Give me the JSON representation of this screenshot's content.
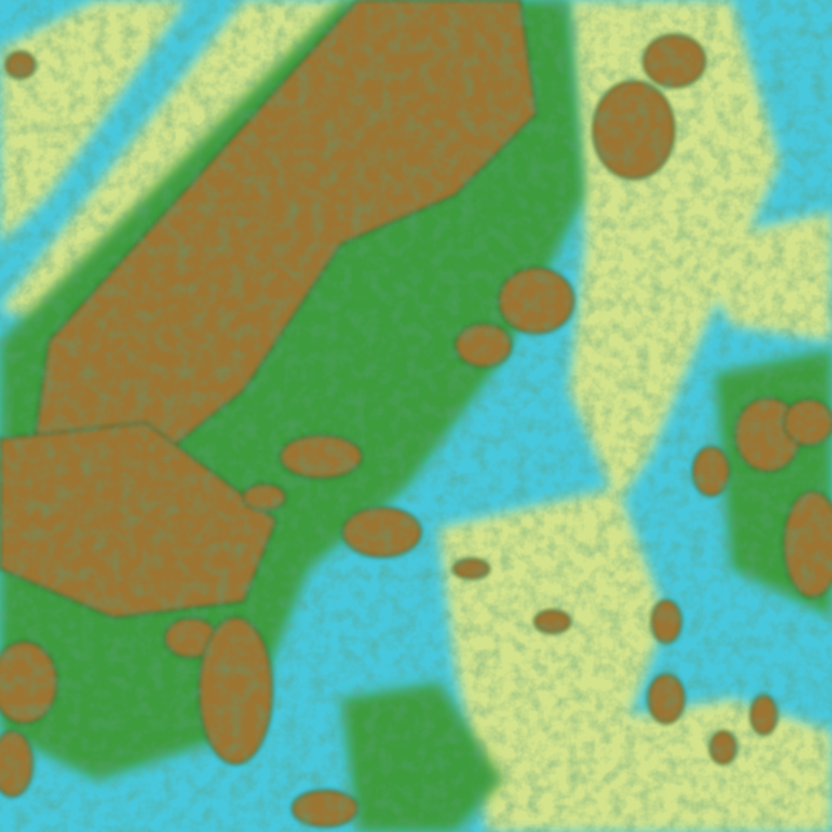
{
  "image": {
    "kind": "false-color satellite imagery",
    "palette": {
      "clear_surface": "#48c8dc",
      "low_cloud": "#d4e48c",
      "mid_cloud": "#3c9c3c",
      "high_cloud": "#9c7430",
      "cloud_edge": "#1e6e3a"
    }
  }
}
